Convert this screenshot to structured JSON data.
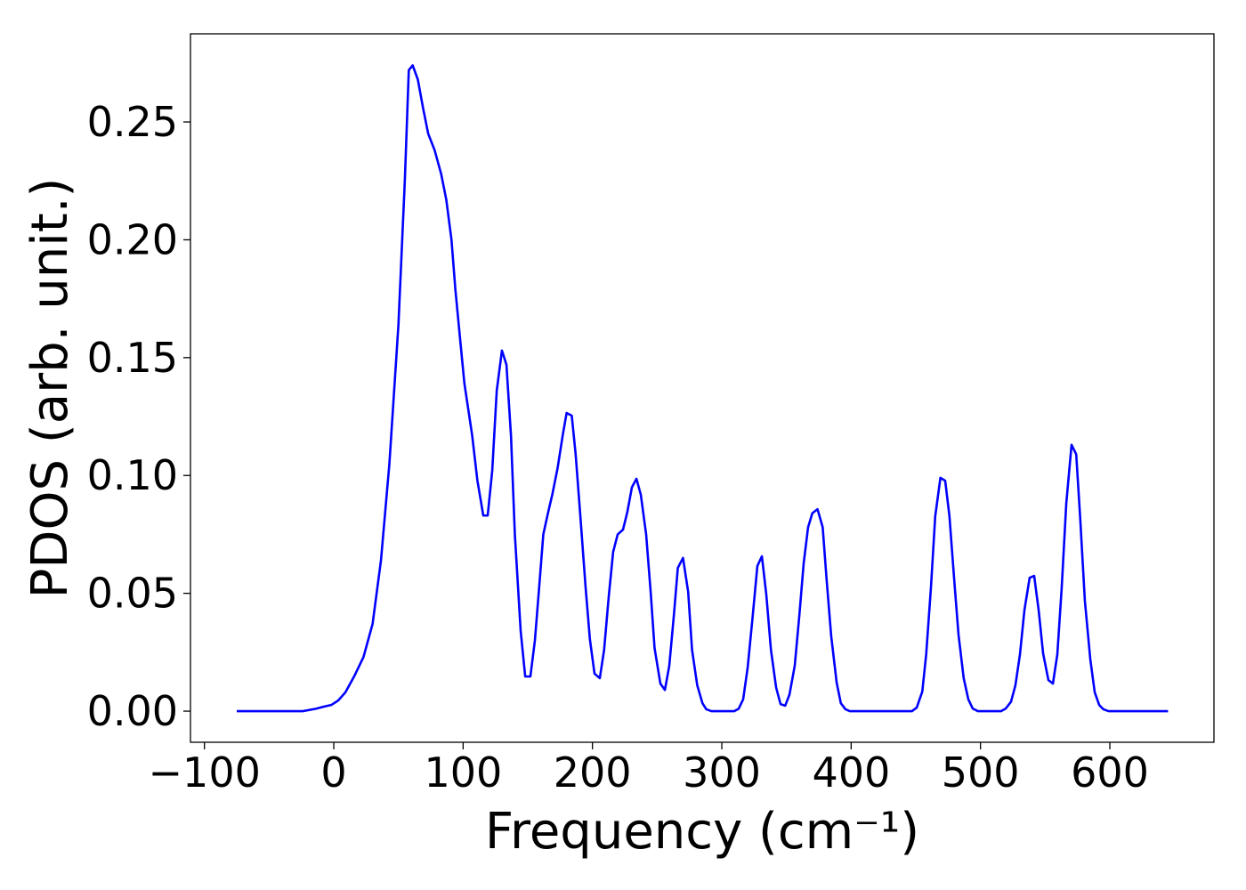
{
  "chart_data": {
    "type": "line",
    "x_label": "Frequency (cm⁻¹)",
    "y_label": "PDOS (arb. unit.)",
    "color": "#0000ff",
    "x": [
      -75,
      -24,
      -14,
      -7,
      -2,
      3.4,
      9,
      16,
      23,
      30,
      36.5,
      43,
      50,
      55,
      58,
      61,
      65,
      69,
      73,
      78,
      83,
      87,
      91,
      94,
      98,
      101,
      107,
      111,
      115.6,
      119,
      122.5,
      126,
      130,
      133.5,
      137,
      140,
      144.5,
      148,
      152,
      155.5,
      159,
      162,
      166,
      169,
      173,
      177,
      180,
      184,
      187,
      190.6,
      194.7,
      198,
      201.6,
      205.7,
      209,
      212.6,
      216,
      219.5,
      223.6,
      227,
      230.5,
      234,
      237.4,
      241.5,
      245,
      248,
      252.5,
      256,
      259.4,
      263,
      266,
      270,
      274,
      277,
      281,
      285,
      288,
      292,
      309.6,
      313,
      316.5,
      320,
      324,
      327.5,
      331,
      334.4,
      338,
      342,
      345.4,
      349,
      352.3,
      356.4,
      360,
      363.3,
      366.7,
      370,
      374,
      378,
      381,
      384.6,
      388.8,
      392,
      395.6,
      399,
      447,
      450.7,
      455,
      458,
      461.7,
      465,
      469,
      472.7,
      476,
      479.6,
      483,
      487,
      490.6,
      494,
      498,
      516,
      519.5,
      523.6,
      527,
      530.5,
      534,
      538,
      541.5,
      545,
      548.4,
      552.5,
      556,
      559.4,
      562.8,
      566.3,
      570.4,
      574,
      577,
      580.7,
      584.9,
      588.3,
      591.8,
      595,
      599,
      645
    ],
    "values": [
      0,
      0,
      0.001,
      0.002,
      0.0026,
      0.0045,
      0.008,
      0.015,
      0.023,
      0.037,
      0.064,
      0.105,
      0.164,
      0.226,
      0.272,
      0.274,
      0.268,
      0.256,
      0.245,
      0.238,
      0.228,
      0.217,
      0.2,
      0.179,
      0.156,
      0.139,
      0.117,
      0.098,
      0.083,
      0.083,
      0.102,
      0.136,
      0.153,
      0.147,
      0.117,
      0.075,
      0.034,
      0.0147,
      0.0147,
      0.03,
      0.054,
      0.075,
      0.085,
      0.092,
      0.103,
      0.117,
      0.1265,
      0.1254,
      0.109,
      0.083,
      0.0525,
      0.0306,
      0.0159,
      0.014,
      0.026,
      0.0487,
      0.0676,
      0.075,
      0.077,
      0.0846,
      0.095,
      0.0986,
      0.0918,
      0.075,
      0.0506,
      0.0268,
      0.0117,
      0.009,
      0.0193,
      0.041,
      0.0608,
      0.065,
      0.0506,
      0.026,
      0.011,
      0.0034,
      0.0008,
      0,
      0,
      0.001,
      0.005,
      0.0185,
      0.041,
      0.0616,
      0.0657,
      0.0495,
      0.026,
      0.01,
      0.003,
      0.0023,
      0.007,
      0.0193,
      0.041,
      0.0627,
      0.078,
      0.084,
      0.0857,
      0.078,
      0.056,
      0.0317,
      0.0121,
      0.0034,
      0.0008,
      0,
      0,
      0.0015,
      0.0083,
      0.024,
      0.0525,
      0.0827,
      0.099,
      0.0978,
      0.0827,
      0.0563,
      0.0325,
      0.014,
      0.005,
      0.0011,
      0,
      0,
      0.0011,
      0.004,
      0.011,
      0.024,
      0.043,
      0.0566,
      0.0574,
      0.0427,
      0.0245,
      0.0132,
      0.0117,
      0.024,
      0.0525,
      0.088,
      0.113,
      0.109,
      0.0827,
      0.0468,
      0.022,
      0.008,
      0.0026,
      0.0008,
      0,
      0
    ],
    "xlim": [
      -110.8,
      680.5
    ],
    "ylim": [
      -0.0132,
      0.2874
    ],
    "xticks": [
      {
        "value": -100,
        "label": "−100"
      },
      0,
      100,
      200,
      300,
      400,
      500,
      600
    ],
    "yticks": [
      {
        "value": 0,
        "label": "0.00"
      },
      0.05,
      {
        "value": 0.1,
        "label": "0.10"
      },
      0.15,
      {
        "value": 0.2,
        "label": "0.20"
      },
      0.25
    ],
    "grid": false
  }
}
